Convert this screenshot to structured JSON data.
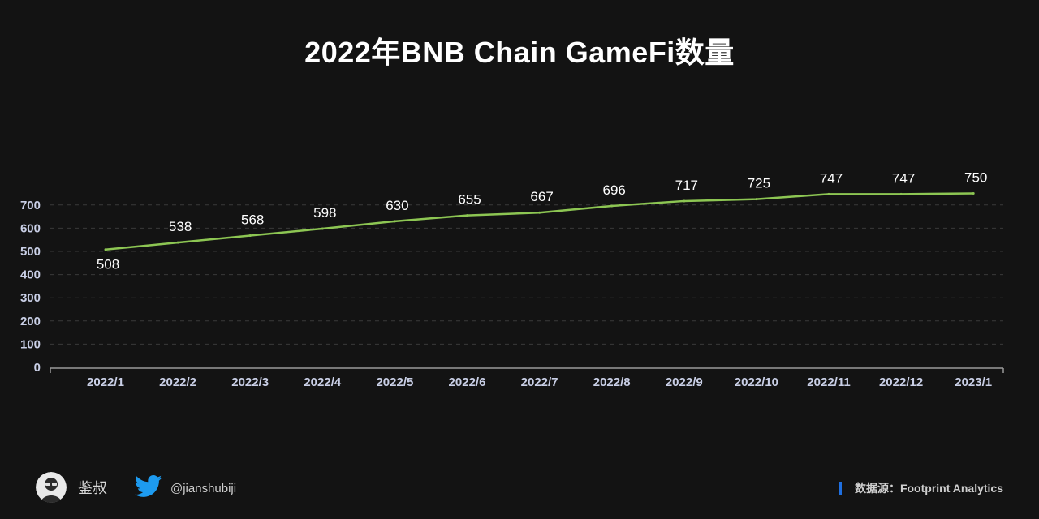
{
  "chart_data": {
    "type": "line",
    "title": "2022年BNB Chain GameFi数量",
    "categories": [
      "2022/1",
      "2022/2",
      "2022/3",
      "2022/4",
      "2022/5",
      "2022/6",
      "2022/7",
      "2022/8",
      "2022/9",
      "2022/10",
      "2022/11",
      "2022/12",
      "2023/1"
    ],
    "values": [
      508,
      538,
      568,
      598,
      630,
      655,
      667,
      696,
      717,
      725,
      747,
      747,
      750
    ],
    "yticks": [
      0,
      100,
      200,
      300,
      400,
      500,
      600,
      700
    ],
    "ylim": [
      0,
      700
    ],
    "grid": true,
    "colors": {
      "line": "#8dc653",
      "grid": "#3a3a3a",
      "axis_text": "#c9cfe6",
      "label_text": "#ffffff"
    }
  },
  "footer": {
    "author": "鉴叔",
    "handle": "@jianshubiji",
    "source": "数据源：Footprint  Analytics",
    "avatar_icon": "avatar-icon",
    "twitter_icon": "twitter-bird-icon",
    "source_bar_color": "#1f6fe0"
  }
}
